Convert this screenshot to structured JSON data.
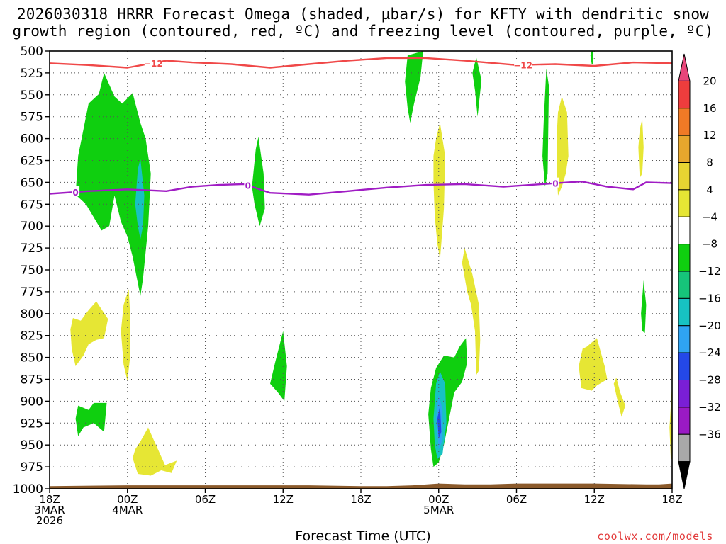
{
  "title": {
    "line1": "2026030318 HRRR Forecast Omega (shaded, µbar/s) for KFTY with dendritic snow",
    "line2": "growth region (contoured, red, ºC) and freezing level (contoured, purple, ºC)"
  },
  "footer": {
    "credit": "coolwx.com/models"
  },
  "chart_data": {
    "type": "contour",
    "xlabel": "Forecast Time (UTC)",
    "ylabel": "",
    "xlim": [
      0,
      48
    ],
    "ylim": [
      1000,
      500
    ],
    "y_ticks": [
      500,
      525,
      550,
      575,
      600,
      625,
      650,
      675,
      700,
      725,
      750,
      775,
      800,
      825,
      850,
      875,
      900,
      925,
      950,
      975,
      1000
    ],
    "x_ticks": [
      {
        "h": 0,
        "label": [
          "18Z",
          "3MAR",
          "2026"
        ]
      },
      {
        "h": 6,
        "label": [
          "00Z",
          "4MAR"
        ]
      },
      {
        "h": 12,
        "label": [
          "06Z"
        ]
      },
      {
        "h": 18,
        "label": [
          "12Z"
        ]
      },
      {
        "h": 24,
        "label": [
          "18Z"
        ]
      },
      {
        "h": 30,
        "label": [
          "00Z",
          "5MAR"
        ]
      },
      {
        "h": 36,
        "label": [
          "06Z"
        ]
      },
      {
        "h": 42,
        "label": [
          "12Z"
        ]
      },
      {
        "h": 48,
        "label": [
          "18Z"
        ]
      }
    ],
    "grid": true,
    "colorbar": {
      "labels": [
        "20",
        "16",
        "12",
        "8",
        "4",
        "−4",
        "−8",
        "−12",
        "−16",
        "−20",
        "−24",
        "−28",
        "−32",
        "−36"
      ],
      "colors": [
        "#e8467a",
        "#ee3d3d",
        "#f07a26",
        "#e7a72d",
        "#e8d432",
        "#e6e634",
        "#ffffff",
        "#0fcf0f",
        "#16c47a",
        "#17c2c2",
        "#2fa3f2",
        "#2448e8",
        "#7a1fd6",
        "#9a1ac4",
        "#a9a9a9",
        "#000000"
      ]
    },
    "series": [
      {
        "name": "Dendritic snow growth region (−12 °C)",
        "color": "#f04848",
        "contour_label": "−12",
        "h": [
          0,
          3,
          6,
          9,
          11,
          14,
          17,
          20,
          23,
          26,
          29,
          32,
          36,
          39,
          42,
          45,
          48
        ],
        "p": [
          514,
          516,
          519,
          511,
          513,
          515,
          519,
          515,
          511,
          508,
          508,
          511,
          516,
          515,
          517,
          513,
          514
        ]
      },
      {
        "name": "Freezing level (0 °C)",
        "color": "#a01cc4",
        "contour_label": "0",
        "h": [
          0,
          3,
          6,
          9,
          11,
          13,
          15,
          17,
          20,
          23,
          26,
          29,
          32,
          35,
          38,
          41,
          43,
          45,
          46,
          48
        ],
        "p": [
          663,
          660,
          658,
          660,
          655,
          653,
          652,
          662,
          664,
          660,
          656,
          653,
          652,
          655,
          652,
          649,
          655,
          658,
          650,
          651
        ]
      }
    ],
    "shaded_regions": [
      {
        "value": -6,
        "color": "#0fcf0f",
        "points": [
          [
            2.0,
            664
          ],
          [
            2.2,
            620
          ],
          [
            3.0,
            560
          ],
          [
            3.8,
            549
          ],
          [
            4.2,
            525
          ],
          [
            5.0,
            552
          ],
          [
            5.6,
            560
          ],
          [
            6.4,
            548
          ],
          [
            7.0,
            582
          ],
          [
            7.4,
            600
          ],
          [
            7.8,
            640
          ],
          [
            7.6,
            700
          ],
          [
            7.2,
            760
          ],
          [
            7.0,
            780
          ],
          [
            6.4,
            735
          ],
          [
            6.0,
            712
          ],
          [
            5.5,
            695
          ],
          [
            5.0,
            665
          ],
          [
            4.6,
            700
          ],
          [
            4.0,
            705
          ],
          [
            3.4,
            690
          ],
          [
            2.8,
            675
          ]
        ]
      },
      {
        "value": -14,
        "color": "#17c2c2",
        "points": [
          [
            6.6,
            675
          ],
          [
            6.8,
            635
          ],
          [
            7.0,
            623
          ],
          [
            7.3,
            665
          ],
          [
            7.2,
            700
          ],
          [
            7.0,
            715
          ],
          [
            6.8,
            700
          ]
        ]
      },
      {
        "value": -6,
        "color": "#0fcf0f",
        "points": [
          [
            15.6,
            655
          ],
          [
            15.9,
            612
          ],
          [
            16.1,
            598
          ],
          [
            16.5,
            640
          ],
          [
            16.6,
            680
          ],
          [
            16.2,
            700
          ],
          [
            15.8,
            675
          ]
        ]
      },
      {
        "value": -6,
        "color": "#0fcf0f",
        "points": [
          [
            17.0,
            880
          ],
          [
            17.4,
            855
          ],
          [
            18.0,
            820
          ],
          [
            18.3,
            860
          ],
          [
            18.1,
            900
          ],
          [
            17.6,
            890
          ]
        ]
      },
      {
        "value": -6,
        "color": "#0fcf0f",
        "points": [
          [
            27.4,
            535
          ],
          [
            27.6,
            505
          ],
          [
            28.8,
            500
          ],
          [
            28.6,
            530
          ],
          [
            28.1,
            560
          ],
          [
            27.8,
            582
          ],
          [
            27.6,
            565
          ]
        ]
      },
      {
        "value": -6,
        "color": "#0fcf0f",
        "points": [
          [
            2.0,
            920
          ],
          [
            2.2,
            905
          ],
          [
            3.0,
            910
          ],
          [
            3.4,
            902
          ],
          [
            4.4,
            902
          ],
          [
            4.2,
            935
          ],
          [
            3.4,
            925
          ],
          [
            2.6,
            930
          ],
          [
            2.2,
            940
          ]
        ]
      },
      {
        "value": -6,
        "color": "#0fcf0f",
        "points": [
          [
            29.2,
            915
          ],
          [
            29.4,
            885
          ],
          [
            29.8,
            862
          ],
          [
            30.4,
            848
          ],
          [
            31.2,
            850
          ],
          [
            31.6,
            838
          ],
          [
            32.1,
            828
          ],
          [
            32.2,
            856
          ],
          [
            31.8,
            878
          ],
          [
            31.2,
            890
          ],
          [
            30.8,
            920
          ],
          [
            30.4,
            950
          ],
          [
            30.0,
            970
          ],
          [
            29.6,
            975
          ],
          [
            29.4,
            955
          ]
        ]
      },
      {
        "value": -14,
        "color": "#17c2c2",
        "points": [
          [
            29.6,
            920
          ],
          [
            29.8,
            880
          ],
          [
            30.1,
            866
          ],
          [
            30.5,
            880
          ],
          [
            30.6,
            925
          ],
          [
            30.3,
            960
          ],
          [
            29.9,
            966
          ],
          [
            29.7,
            950
          ]
        ]
      },
      {
        "value": -18,
        "color": "#2fa3f2",
        "points": [
          [
            29.8,
            918
          ],
          [
            30.0,
            892
          ],
          [
            30.3,
            910
          ],
          [
            30.3,
            945
          ],
          [
            30.0,
            955
          ]
        ]
      },
      {
        "value": -22,
        "color": "#2448e8",
        "points": [
          [
            29.9,
            920
          ],
          [
            30.1,
            905
          ],
          [
            30.2,
            935
          ],
          [
            30.0,
            943
          ]
        ]
      },
      {
        "value": -6,
        "color": "#0fcf0f",
        "points": [
          [
            32.6,
            525
          ],
          [
            32.9,
            507
          ],
          [
            33.3,
            533
          ],
          [
            33.0,
            575
          ],
          [
            32.8,
            545
          ]
        ]
      },
      {
        "value": -6,
        "color": "#0fcf0f",
        "points": [
          [
            38.1,
            580
          ],
          [
            38.3,
            520
          ],
          [
            38.5,
            540
          ],
          [
            38.4,
            640
          ],
          [
            38.2,
            655
          ],
          [
            38.0,
            620
          ]
        ]
      },
      {
        "value": -6,
        "color": "#0fcf0f",
        "points": [
          [
            41.7,
            505
          ],
          [
            41.9,
            495
          ],
          [
            41.9,
            515
          ],
          [
            41.8,
            515
          ]
        ]
      },
      {
        "value": -6,
        "color": "#0fcf0f",
        "points": [
          [
            45.6,
            800
          ],
          [
            45.8,
            762
          ],
          [
            46.0,
            790
          ],
          [
            45.9,
            822
          ],
          [
            45.7,
            820
          ]
        ]
      },
      {
        "value": 6,
        "color": "#e6e634",
        "points": [
          [
            1.6,
            818
          ],
          [
            1.8,
            805
          ],
          [
            2.4,
            808
          ],
          [
            3.0,
            796
          ],
          [
            3.6,
            786
          ],
          [
            4.5,
            806
          ],
          [
            4.2,
            828
          ],
          [
            3.6,
            830
          ],
          [
            3.0,
            835
          ],
          [
            2.6,
            848
          ],
          [
            2.0,
            860
          ],
          [
            1.7,
            840
          ]
        ]
      },
      {
        "value": 6,
        "color": "#e6e634",
        "points": [
          [
            5.5,
            820
          ],
          [
            5.7,
            790
          ],
          [
            6.1,
            772
          ],
          [
            6.2,
            800
          ],
          [
            6.2,
            850
          ],
          [
            6.0,
            877
          ],
          [
            5.7,
            858
          ]
        ]
      },
      {
        "value": 6,
        "color": "#e6e634",
        "points": [
          [
            6.4,
            965
          ],
          [
            6.6,
            955
          ],
          [
            7.0,
            946
          ],
          [
            7.6,
            930
          ],
          [
            8.2,
            950
          ],
          [
            8.9,
            973
          ],
          [
            9.8,
            968
          ],
          [
            9.4,
            982
          ],
          [
            8.6,
            979
          ],
          [
            7.8,
            985
          ],
          [
            6.8,
            983
          ]
        ]
      },
      {
        "value": 6,
        "color": "#e6e634",
        "points": [
          [
            29.6,
            650
          ],
          [
            29.6,
            620
          ],
          [
            29.8,
            600
          ],
          [
            30.1,
            582
          ],
          [
            30.5,
            620
          ],
          [
            30.4,
            680
          ],
          [
            30.2,
            720
          ],
          [
            30.1,
            738
          ],
          [
            29.9,
            720
          ],
          [
            29.7,
            690
          ]
        ]
      },
      {
        "value": 6,
        "color": "#e6e634",
        "points": [
          [
            31.8,
            742
          ],
          [
            32.0,
            725
          ],
          [
            32.6,
            755
          ],
          [
            33.1,
            790
          ],
          [
            33.2,
            830
          ],
          [
            33.1,
            865
          ],
          [
            32.9,
            870
          ],
          [
            32.8,
            820
          ],
          [
            32.5,
            790
          ],
          [
            32.2,
            775
          ]
        ]
      },
      {
        "value": 6,
        "color": "#e6e634",
        "points": [
          [
            39.1,
            598
          ],
          [
            39.2,
            570
          ],
          [
            39.5,
            552
          ],
          [
            39.9,
            570
          ],
          [
            40.0,
            620
          ],
          [
            39.8,
            640
          ],
          [
            39.5,
            655
          ],
          [
            39.2,
            665
          ],
          [
            39.1,
            635
          ]
        ]
      },
      {
        "value": 6,
        "color": "#e6e634",
        "points": [
          [
            40.8,
            860
          ],
          [
            41.1,
            840
          ],
          [
            41.4,
            838
          ],
          [
            42.2,
            828
          ],
          [
            42.8,
            860
          ],
          [
            43.0,
            875
          ],
          [
            42.2,
            882
          ],
          [
            41.8,
            888
          ],
          [
            41.0,
            885
          ]
        ]
      },
      {
        "value": 6,
        "color": "#e6e634",
        "points": [
          [
            45.4,
            610
          ],
          [
            45.5,
            590
          ],
          [
            45.7,
            577
          ],
          [
            45.8,
            610
          ],
          [
            45.7,
            640
          ],
          [
            45.5,
            645
          ]
        ]
      },
      {
        "value": 6,
        "color": "#e6e634",
        "points": [
          [
            43.5,
            880
          ],
          [
            43.7,
            873
          ],
          [
            44.0,
            890
          ],
          [
            44.4,
            905
          ],
          [
            44.1,
            918
          ],
          [
            43.8,
            900
          ]
        ]
      },
      {
        "value": 6,
        "color": "#e6e634",
        "points": [
          [
            47.8,
            930
          ],
          [
            48.0,
            880
          ],
          [
            48.0,
            965
          ],
          [
            47.9,
            968
          ]
        ]
      }
    ],
    "terrain": {
      "color": "#8b5a2b",
      "h": [
        0,
        6,
        12,
        20,
        24,
        26,
        28,
        30,
        32,
        34,
        36,
        42,
        46,
        47,
        48
      ],
      "p": [
        997,
        996,
        996,
        996,
        997,
        997,
        996,
        994,
        995,
        995,
        994,
        994,
        995,
        995,
        994
      ]
    }
  }
}
